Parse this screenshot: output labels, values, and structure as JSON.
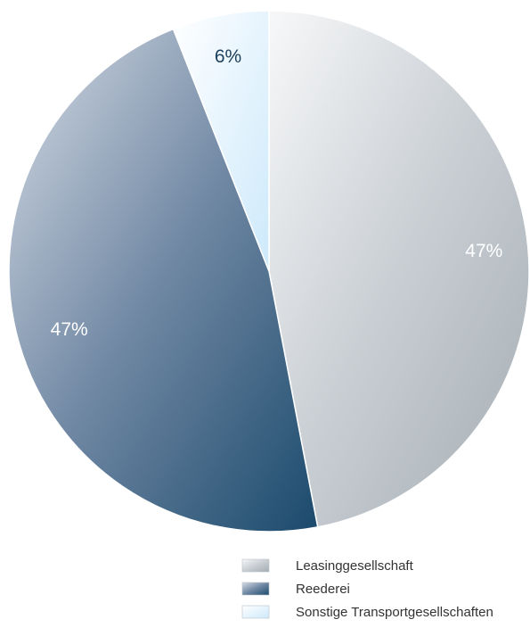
{
  "chart_data": {
    "type": "pie",
    "title": "",
    "slices": [
      {
        "name": "Leasinggesellschaft",
        "value": 47,
        "label": "47%",
        "colors": [
          "#f7f8f9",
          "#c9ced3",
          "#a3adb3"
        ],
        "label_color": "#ffffff"
      },
      {
        "name": "Reederei",
        "value": 47,
        "label": "47%",
        "colors": [
          "#d6dce5",
          "#6f87a3",
          "#1b4a6c"
        ],
        "label_color": "#ffffff"
      },
      {
        "name": "Sonstige Transportgesellschaften",
        "value": 6,
        "label": "6%",
        "colors": [
          "#ffffff",
          "#e6f4fd",
          "#cde9fb"
        ],
        "label_color": "#1c3f5c"
      }
    ],
    "start_angle_deg": 0,
    "direction": "clockwise",
    "legend_position": "bottom-right"
  }
}
